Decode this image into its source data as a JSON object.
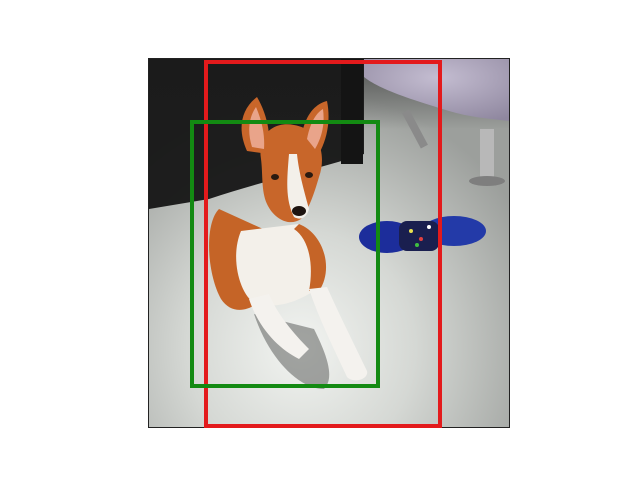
{
  "figure": {
    "subject": "dog-photo",
    "colors": {
      "background": "#ffffff",
      "red_box": "#e31a1c",
      "green_box": "#138a12",
      "floor": "#c9ccc9",
      "dog_coat": "#c8662a",
      "dog_chest": "#f4f1ea",
      "chair": "#aaa2b8",
      "toy": "#1d2f9a"
    },
    "boxes": [
      {
        "name": "red-bounding-box",
        "color": "#e31a1c"
      },
      {
        "name": "green-bounding-box",
        "color": "#138a12"
      }
    ]
  }
}
